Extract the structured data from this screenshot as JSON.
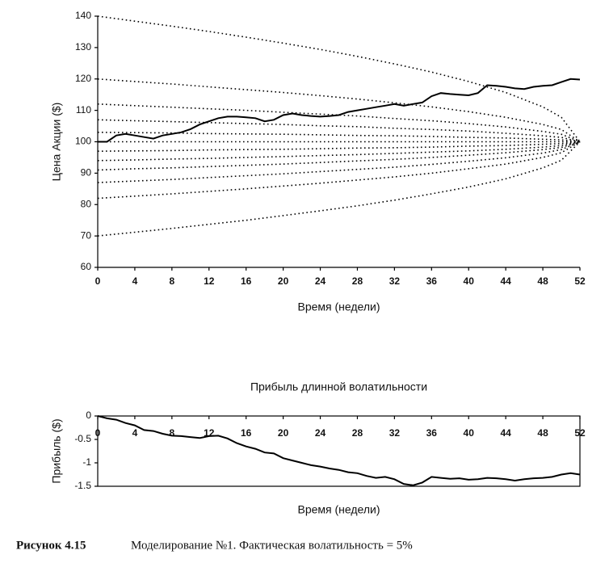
{
  "chart_data": [
    {
      "type": "line",
      "ylabel": "Цена Акции ($)",
      "xlabel": "Время (недели)",
      "xlim": [
        0,
        52
      ],
      "xticks": [
        0,
        4,
        8,
        12,
        16,
        20,
        24,
        28,
        32,
        36,
        40,
        44,
        48,
        52
      ],
      "ylim": [
        60,
        140
      ],
      "yticks": [
        60,
        70,
        80,
        90,
        100,
        110,
        120,
        130,
        140
      ],
      "frame": false,
      "xaxis_position": "bottom",
      "series": [
        {
          "color": "#000000",
          "style": "solid",
          "x": [
            0,
            1,
            2,
            3,
            4,
            5,
            6,
            7,
            8,
            9,
            10,
            11,
            12,
            13,
            14,
            15,
            16,
            17,
            18,
            19,
            20,
            21,
            22,
            23,
            24,
            25,
            26,
            27,
            28,
            29,
            30,
            31,
            32,
            33,
            34,
            35,
            36,
            37,
            38,
            39,
            40,
            41,
            42,
            43,
            44,
            45,
            46,
            47,
            48,
            49,
            50,
            51,
            52
          ],
          "values": [
            100,
            100,
            102,
            102.5,
            102,
            101.5,
            101,
            102,
            102.5,
            103,
            104,
            105.5,
            106.5,
            107.5,
            108,
            108,
            107.8,
            107.5,
            106.5,
            107,
            108.5,
            109,
            108.5,
            108.2,
            108,
            108.2,
            108.5,
            109.5,
            110,
            110.5,
            111,
            111.5,
            112,
            111.5,
            112,
            112.5,
            114.5,
            115.5,
            115.2,
            115,
            114.8,
            115.5,
            118,
            117.8,
            117.5,
            117,
            116.8,
            117.5,
            117.8,
            118,
            119,
            120,
            119.8
          ]
        },
        {
          "color": "#000000",
          "style": "dotted",
          "x": [
            0,
            4,
            8,
            12,
            16,
            20,
            24,
            28,
            32,
            36,
            40,
            44,
            48,
            50,
            52
          ],
          "values": [
            140,
            138.4,
            136.8,
            135.1,
            133.3,
            131.4,
            129.4,
            127.2,
            124.8,
            122.2,
            119.2,
            115.7,
            111.1,
            107.8,
            100
          ]
        },
        {
          "color": "#000000",
          "style": "dotted",
          "x": [
            0,
            4,
            8,
            12,
            16,
            20,
            24,
            28,
            32,
            36,
            40,
            44,
            48,
            50,
            52
          ],
          "values": [
            120,
            119.2,
            118.4,
            117.5,
            116.6,
            115.7,
            114.7,
            113.6,
            112.4,
            111.1,
            109.6,
            107.8,
            105.5,
            103.9,
            100
          ]
        },
        {
          "color": "#000000",
          "style": "dotted",
          "x": [
            0,
            4,
            8,
            12,
            16,
            20,
            24,
            28,
            32,
            36,
            40,
            44,
            48,
            50,
            52
          ],
          "values": [
            112,
            111.5,
            111,
            110.5,
            110,
            109.4,
            108.8,
            108.2,
            107.4,
            106.7,
            105.8,
            104.7,
            103.3,
            102.4,
            100
          ]
        },
        {
          "color": "#000000",
          "style": "dotted",
          "x": [
            0,
            4,
            8,
            12,
            16,
            20,
            24,
            28,
            32,
            36,
            40,
            44,
            48,
            50,
            52
          ],
          "values": [
            107,
            106.7,
            106.4,
            106.1,
            105.8,
            105.5,
            105.1,
            104.8,
            104.3,
            103.9,
            103.4,
            102.7,
            101.9,
            101.4,
            100
          ]
        },
        {
          "color": "#000000",
          "style": "dotted",
          "x": [
            0,
            4,
            8,
            12,
            16,
            20,
            24,
            28,
            32,
            36,
            40,
            44,
            48,
            50,
            52
          ],
          "values": [
            103,
            102.9,
            102.8,
            102.6,
            102.5,
            102.4,
            102.2,
            102,
            101.9,
            101.7,
            101.4,
            101.2,
            100.8,
            100.6,
            100
          ]
        },
        {
          "color": "#000000",
          "style": "dotted",
          "x": [
            0,
            4,
            8,
            12,
            16,
            20,
            24,
            28,
            32,
            36,
            40,
            44,
            48,
            50,
            52
          ],
          "values": [
            100,
            100,
            100,
            100,
            100,
            100,
            100,
            100,
            100,
            100,
            100,
            100,
            100,
            100,
            100
          ]
        },
        {
          "color": "#000000",
          "style": "dotted",
          "x": [
            0,
            4,
            8,
            12,
            16,
            20,
            24,
            28,
            32,
            36,
            40,
            44,
            48,
            50,
            52
          ],
          "values": [
            97,
            97.1,
            97.2,
            97.4,
            97.5,
            97.6,
            97.8,
            98,
            98.1,
            98.3,
            98.6,
            98.8,
            99.2,
            99.4,
            100
          ]
        },
        {
          "color": "#000000",
          "style": "dotted",
          "x": [
            0,
            4,
            8,
            12,
            16,
            20,
            24,
            28,
            32,
            36,
            40,
            44,
            48,
            50,
            52
          ],
          "values": [
            94,
            94.2,
            94.5,
            94.7,
            95,
            95.3,
            95.6,
            95.9,
            96.3,
            96.7,
            97.1,
            97.6,
            98.3,
            98.8,
            100
          ]
        },
        {
          "color": "#000000",
          "style": "dotted",
          "x": [
            0,
            4,
            8,
            12,
            16,
            20,
            24,
            28,
            32,
            36,
            40,
            44,
            48,
            50,
            52
          ],
          "values": [
            91,
            91.4,
            91.7,
            92.1,
            92.5,
            92.9,
            93.4,
            93.9,
            94.4,
            95,
            95.7,
            96.5,
            97.5,
            98.2,
            100
          ]
        },
        {
          "color": "#000000",
          "style": "dotted",
          "x": [
            0,
            4,
            8,
            12,
            16,
            20,
            24,
            28,
            32,
            36,
            40,
            44,
            48,
            50,
            52
          ],
          "values": [
            87,
            87.5,
            88,
            88.6,
            89.2,
            89.8,
            90.5,
            91.2,
            91.9,
            92.8,
            93.8,
            94.9,
            96.4,
            97.5,
            100
          ]
        },
        {
          "color": "#000000",
          "style": "dotted",
          "x": [
            0,
            4,
            8,
            12,
            16,
            20,
            24,
            28,
            32,
            36,
            40,
            44,
            48,
            50,
            52
          ],
          "values": [
            82,
            82.7,
            83.4,
            84.2,
            85,
            85.9,
            86.8,
            87.8,
            88.8,
            90,
            91.4,
            92.9,
            95,
            96.5,
            100
          ]
        },
        {
          "color": "#000000",
          "style": "dotted",
          "x": [
            0,
            4,
            8,
            12,
            16,
            20,
            24,
            28,
            32,
            36,
            40,
            44,
            48,
            50,
            52
          ],
          "values": [
            70,
            71.2,
            72.4,
            73.7,
            75,
            76.5,
            78,
            79.6,
            81.4,
            83.4,
            85.6,
            88.2,
            91.7,
            94.1,
            100
          ]
        }
      ]
    },
    {
      "type": "line",
      "title": "Прибыль длинной волатильности",
      "ylabel": "Прибыль ($)",
      "xlabel": "Время (недели)",
      "xlim": [
        0,
        52
      ],
      "xticks": [
        0,
        4,
        8,
        12,
        16,
        20,
        24,
        28,
        32,
        36,
        40,
        44,
        48,
        52
      ],
      "ylim": [
        -1.5,
        0
      ],
      "yticks": [
        -1.5,
        -1,
        -0.5,
        0
      ],
      "frame": true,
      "xaxis_position": "top",
      "series": [
        {
          "color": "#000000",
          "style": "solid",
          "x": [
            0,
            1,
            2,
            3,
            4,
            5,
            6,
            7,
            8,
            9,
            10,
            11,
            12,
            13,
            14,
            15,
            16,
            17,
            18,
            19,
            20,
            21,
            22,
            23,
            24,
            25,
            26,
            27,
            28,
            29,
            30,
            31,
            32,
            33,
            34,
            35,
            36,
            37,
            38,
            39,
            40,
            41,
            42,
            43,
            44,
            45,
            46,
            47,
            48,
            49,
            50,
            51,
            52
          ],
          "values": [
            0,
            -0.05,
            -0.08,
            -0.15,
            -0.2,
            -0.3,
            -0.32,
            -0.38,
            -0.42,
            -0.43,
            -0.45,
            -0.47,
            -0.43,
            -0.42,
            -0.48,
            -0.58,
            -0.65,
            -0.7,
            -0.78,
            -0.8,
            -0.9,
            -0.95,
            -1,
            -1.05,
            -1.08,
            -1.12,
            -1.15,
            -1.2,
            -1.22,
            -1.28,
            -1.32,
            -1.3,
            -1.35,
            -1.45,
            -1.48,
            -1.42,
            -1.3,
            -1.32,
            -1.34,
            -1.33,
            -1.36,
            -1.35,
            -1.32,
            -1.33,
            -1.35,
            -1.38,
            -1.35,
            -1.33,
            -1.32,
            -1.3,
            -1.25,
            -1.22,
            -1.25
          ]
        }
      ]
    }
  ],
  "caption": {
    "label": "Рисунок 4.15",
    "text": "Моделирование №1. Фактическая волатильность = 5%"
  }
}
